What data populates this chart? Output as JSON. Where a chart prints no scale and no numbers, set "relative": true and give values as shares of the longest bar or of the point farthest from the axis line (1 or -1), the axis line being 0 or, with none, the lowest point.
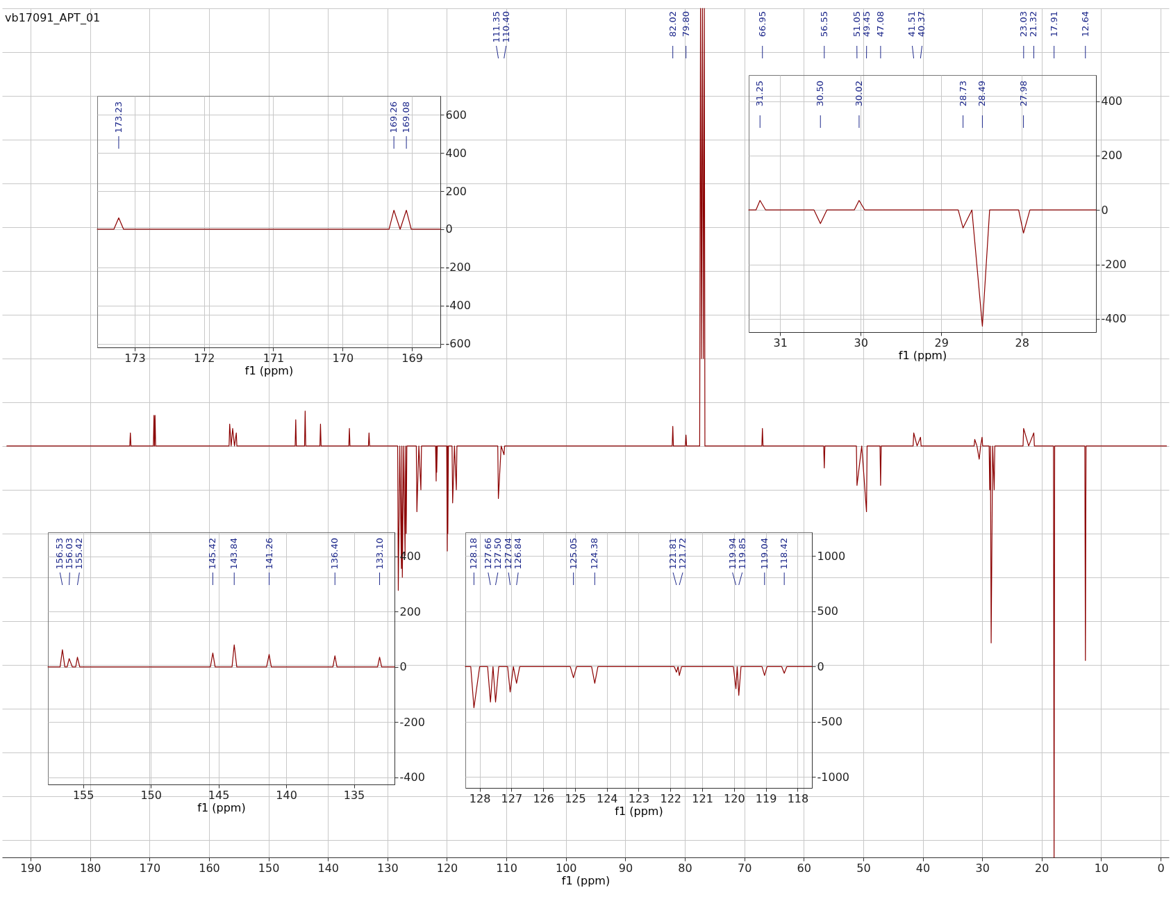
{
  "chart_data": [
    {
      "type": "line",
      "title": "vb17091_APT_01",
      "xlabel": "f1 (ppm)",
      "relative": true,
      "grid": true,
      "xlim": [
        194.8,
        -1.4
      ],
      "xticks": [
        190,
        180,
        170,
        160,
        150,
        140,
        130,
        120,
        110,
        100,
        90,
        80,
        70,
        60,
        50,
        40,
        30,
        20,
        10,
        0
      ],
      "series": [
        {
          "color": "#8b0000",
          "x": [
            194,
            173.33,
            173.23,
            173.13,
            169.36,
            169.26,
            169.17,
            169.08,
            168.98,
            156.63,
            156.53,
            156.28,
            156.03,
            155.72,
            155.42,
            155.32,
            145.52,
            145.42,
            145.32,
            143.94,
            143.84,
            143.74,
            141.36,
            141.26,
            141.16,
            136.5,
            136.4,
            136.3,
            133.2,
            133.1,
            133.0,
            128.28,
            128.18,
            127.92,
            127.66,
            127.58,
            127.5,
            127.27,
            127.04,
            126.94,
            126.84,
            126.74,
            125.15,
            125.05,
            124.72,
            124.38,
            124.28,
            121.91,
            121.81,
            121.76,
            121.72,
            121.62,
            120.04,
            119.94,
            119.9,
            119.85,
            119.75,
            119.14,
            119.04,
            118.73,
            118.42,
            118.32,
            111.45,
            111.35,
            110.88,
            110.4,
            110.3,
            82.12,
            82.02,
            81.92,
            79.9,
            79.8,
            79.7,
            77.5,
            77.36,
            77.2,
            77.04,
            76.88,
            76.72,
            76.62,
            67.05,
            66.95,
            66.85,
            56.65,
            56.55,
            56.45,
            51.15,
            51.05,
            50.25,
            49.45,
            49.35,
            47.18,
            47.08,
            46.98,
            41.61,
            41.51,
            40.94,
            40.37,
            40.27,
            31.35,
            31.25,
            30.88,
            30.5,
            30.26,
            30.02,
            29.92,
            28.83,
            28.73,
            28.61,
            28.49,
            28.24,
            27.98,
            27.88,
            23.13,
            23.03,
            22.18,
            21.32,
            21.22,
            18.01,
            17.91,
            17.81,
            12.74,
            12.64,
            12.54,
            -1
          ],
          "values": [
            0,
            0,
            0.03,
            0,
            0,
            0.07,
            0,
            0.07,
            0,
            0,
            0.05,
            0,
            0.04,
            0,
            0.03,
            0,
            0,
            0.06,
            0,
            0,
            0.08,
            0,
            0,
            0.05,
            0,
            0,
            0.04,
            0,
            0,
            0.03,
            0,
            0,
            -0.33,
            0,
            -0.28,
            0,
            -0.3,
            0,
            -0.25,
            0,
            -0.2,
            0,
            0,
            -0.15,
            0,
            -0.1,
            0,
            0,
            -0.08,
            0,
            -0.06,
            0,
            0,
            -0.24,
            0,
            -0.2,
            0,
            0,
            -0.13,
            0,
            -0.1,
            0,
            0,
            -0.12,
            0,
            -0.02,
            0,
            0,
            0.045,
            0,
            0,
            0.025,
            0,
            0,
            1,
            0.2,
            1,
            0.2,
            1,
            0,
            0,
            0.04,
            0,
            0,
            -0.05,
            0,
            0,
            -0.09,
            0,
            -0.15,
            0,
            0,
            -0.09,
            0,
            0,
            0.03,
            0,
            0.02,
            0,
            0,
            0.015,
            0,
            -0.03,
            0,
            0.02,
            0,
            0,
            -0.1,
            0,
            -0.45,
            0,
            -0.1,
            0,
            0,
            0.04,
            0,
            0.03,
            0,
            0,
            -0.94,
            0,
            0,
            -0.49,
            0,
            0
          ]
        }
      ],
      "annotations": [
        {
          "text": "111.35",
          "x": 111.35
        },
        {
          "text": "110.40",
          "x": 110.4
        },
        {
          "text": "82.02",
          "x": 82.02
        },
        {
          "text": "79.80",
          "x": 79.8
        },
        {
          "text": "66.95",
          "x": 66.95
        },
        {
          "text": "56.55",
          "x": 56.55
        },
        {
          "text": "51.05",
          "x": 51.05
        },
        {
          "text": "49.45",
          "x": 49.45
        },
        {
          "text": "47.08",
          "x": 47.08
        },
        {
          "text": "41.51",
          "x": 41.51
        },
        {
          "text": "40.37",
          "x": 40.37
        },
        {
          "text": "23.03",
          "x": 23.03
        },
        {
          "text": "21.32",
          "x": 21.32
        },
        {
          "text": "17.91",
          "x": 17.91
        },
        {
          "text": "12.64",
          "x": 12.64
        }
      ]
    },
    {
      "type": "line",
      "xlabel": "f1 (ppm)",
      "grid": true,
      "xlim": [
        173.54,
        168.59
      ],
      "xticks": [
        173,
        172,
        171,
        170,
        169
      ],
      "ylim": [
        -620,
        700
      ],
      "yticks": [
        -600,
        -400,
        -200,
        0,
        200,
        400,
        600
      ],
      "series": [
        {
          "color": "#8b0000",
          "x": [
            173.54,
            173.3,
            173.23,
            173.16,
            169.33,
            169.26,
            169.17,
            169.08,
            169.01,
            168.59
          ],
          "values": [
            0,
            0,
            60,
            0,
            0,
            100,
            0,
            100,
            0,
            0
          ]
        }
      ],
      "annotations": [
        {
          "text": "173.23",
          "x": 173.23
        },
        {
          "text": "169.26",
          "x": 169.26
        },
        {
          "text": "169.08",
          "x": 169.08
        }
      ]
    },
    {
      "type": "line",
      "xlabel": "f1 (ppm)",
      "grid": true,
      "xlim": [
        31.39,
        27.08
      ],
      "xticks": [
        31,
        30,
        29,
        28
      ],
      "ylim": [
        -449,
        496
      ],
      "yticks": [
        -400,
        -200,
        0,
        200,
        400
      ],
      "series": [
        {
          "color": "#8b0000",
          "x": [
            31.39,
            31.3,
            31.25,
            31.18,
            30.58,
            30.5,
            30.42,
            30.08,
            30.02,
            29.95,
            28.79,
            28.73,
            28.62,
            28.49,
            28.4,
            28.04,
            27.98,
            27.9,
            27.08
          ],
          "values": [
            0,
            0,
            35,
            0,
            0,
            -50,
            0,
            0,
            35,
            0,
            0,
            -66,
            0,
            -427,
            0,
            0,
            -85,
            0,
            0
          ]
        }
      ],
      "annotations": [
        {
          "text": "31.25",
          "x": 31.25
        },
        {
          "text": "30.50",
          "x": 30.5
        },
        {
          "text": "30.02",
          "x": 30.02
        },
        {
          "text": "28.73",
          "x": 28.73
        },
        {
          "text": "28.49",
          "x": 28.49
        },
        {
          "text": "27.98",
          "x": 27.98
        }
      ]
    },
    {
      "type": "line",
      "xlabel": "f1 (ppm)",
      "grid": true,
      "xlim": [
        157.6,
        132
      ],
      "xticks": [
        155,
        150,
        145,
        140,
        135
      ],
      "ylim": [
        -426,
        488
      ],
      "yticks": [
        -400,
        -200,
        0,
        200,
        400
      ],
      "series": [
        {
          "color": "#8b0000",
          "x": [
            157.6,
            156.7,
            156.53,
            156.35,
            156.18,
            156.03,
            155.8,
            155.55,
            155.42,
            155.25,
            145.6,
            145.42,
            145.25,
            144.0,
            143.84,
            143.65,
            141.45,
            141.26,
            141.1,
            136.55,
            136.4,
            136.25,
            133.25,
            133.1,
            132.95,
            132
          ],
          "values": [
            0,
            0,
            62,
            0,
            0,
            30,
            0,
            0,
            35,
            0,
            0,
            50,
            0,
            0,
            80,
            0,
            0,
            45,
            0,
            0,
            40,
            0,
            0,
            35,
            0,
            0
          ]
        }
      ],
      "annotations": [
        {
          "text": "156.53",
          "x": 156.53
        },
        {
          "text": "156.03",
          "x": 156.03
        },
        {
          "text": "155.42",
          "x": 155.42
        },
        {
          "text": "145.42",
          "x": 145.42
        },
        {
          "text": "143.84",
          "x": 143.84
        },
        {
          "text": "141.26",
          "x": 141.26
        },
        {
          "text": "136.40",
          "x": 136.4
        },
        {
          "text": "133.10",
          "x": 133.1
        }
      ]
    },
    {
      "type": "line",
      "xlabel": "f1 (ppm)",
      "grid": true,
      "xlim": [
        128.45,
        117.55
      ],
      "xticks": [
        128,
        127,
        126,
        125,
        124,
        123,
        122,
        121,
        120,
        119,
        118
      ],
      "ylim": [
        -1098,
        1217
      ],
      "yticks": [
        -1000,
        -500,
        0,
        500,
        1000
      ],
      "series": [
        {
          "color": "#8b0000",
          "x": [
            128.45,
            128.28,
            128.18,
            128.0,
            127.75,
            127.66,
            127.58,
            127.5,
            127.4,
            127.12,
            127.04,
            126.94,
            126.84,
            126.74,
            125.15,
            125.05,
            124.95,
            124.48,
            124.38,
            124.28,
            121.88,
            121.81,
            121.76,
            121.72,
            121.65,
            120.02,
            119.94,
            119.9,
            119.85,
            119.78,
            119.12,
            119.04,
            118.96,
            118.5,
            118.42,
            118.34,
            117.55
          ],
          "values": [
            0,
            0,
            -373,
            0,
            0,
            -320,
            0,
            -320,
            0,
            0,
            -230,
            0,
            -150,
            0,
            0,
            -100,
            0,
            0,
            -150,
            0,
            0,
            -50,
            0,
            -80,
            0,
            0,
            -200,
            0,
            -260,
            0,
            0,
            -80,
            0,
            0,
            -60,
            0,
            0
          ]
        }
      ],
      "annotations": [
        {
          "text": "128.18",
          "x": 128.18
        },
        {
          "text": "127.66",
          "x": 127.66
        },
        {
          "text": "127.50",
          "x": 127.5
        },
        {
          "text": "127.04",
          "x": 127.04
        },
        {
          "text": "126.84",
          "x": 126.84
        },
        {
          "text": "125.05",
          "x": 125.05
        },
        {
          "text": "124.38",
          "x": 124.38
        },
        {
          "text": "121.81",
          "x": 121.81
        },
        {
          "text": "121.72",
          "x": 121.72
        },
        {
          "text": "119.94",
          "x": 119.94
        },
        {
          "text": "119.85",
          "x": 119.85
        },
        {
          "text": "119.04",
          "x": 119.04
        },
        {
          "text": "118.42",
          "x": 118.42
        }
      ]
    }
  ]
}
